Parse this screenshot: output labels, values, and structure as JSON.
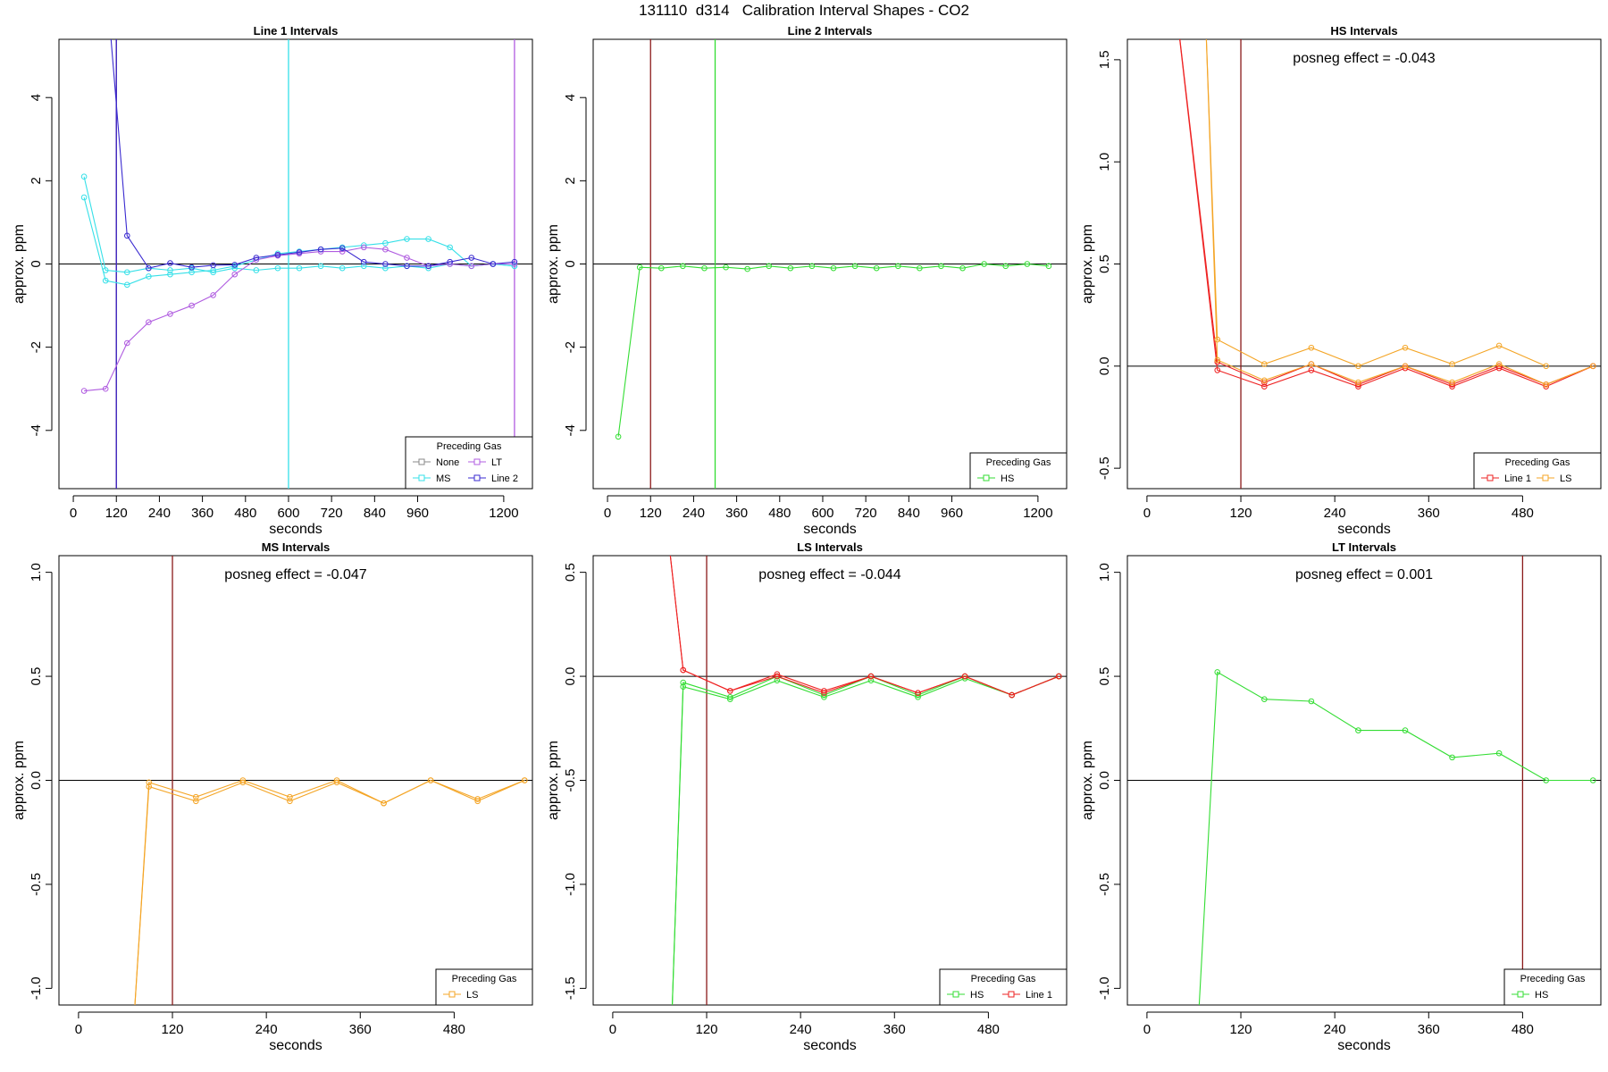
{
  "suptitle": "131110  d314   Calibration Interval Shapes - CO2",
  "colors": {
    "None": "#888888",
    "MS": "#36e0e8",
    "LT": "#b05ce0",
    "Line 2": "#3a2ad0",
    "HS": "#33dd33",
    "Line 1": "#ee2222",
    "LS": "#f4a526",
    "vline_dark": "#8b1a1a"
  },
  "chart_data": [
    {
      "type": "line",
      "title": "Line 1 Intervals",
      "xlabel": "seconds",
      "ylabel": "approx. ppm",
      "xlim": [
        -40,
        1280
      ],
      "ylim": [
        -5.4,
        5.4
      ],
      "xticks": [
        0,
        120,
        240,
        360,
        480,
        600,
        720,
        840,
        960,
        1200
      ],
      "yticks": [
        -4,
        -2,
        0,
        2,
        4
      ],
      "hline": 0,
      "vlines": [
        {
          "x": 120,
          "color": "#8b1a1a"
        },
        {
          "x": 120,
          "color": "#3a2ad0"
        },
        {
          "x": 600,
          "color": "#36e0e8"
        },
        {
          "x": 1230,
          "color": "#b05ce0"
        }
      ],
      "legend": {
        "title": "Preceding Gas",
        "position": "bottom-right",
        "cols": 2,
        "entries": [
          "None",
          "MS",
          "LT",
          "Line 2"
        ]
      },
      "series": [
        {
          "name": "MS",
          "x": [
            30,
            90,
            150,
            210,
            270,
            330,
            390,
            450,
            510,
            570,
            630,
            690,
            750,
            810,
            870,
            930,
            990,
            1050,
            1110,
            1170,
            1230
          ],
          "y": [
            2.1,
            -0.15,
            -0.2,
            -0.1,
            -0.15,
            -0.1,
            -0.2,
            -0.1,
            -0.15,
            -0.1,
            -0.1,
            -0.05,
            -0.1,
            -0.05,
            -0.1,
            -0.05,
            -0.1,
            0.0,
            -0.05,
            0.0,
            -0.05
          ]
        },
        {
          "name": "MS",
          "x": [
            30,
            90,
            150,
            210,
            270,
            330,
            390,
            450,
            510,
            570,
            630,
            690,
            750,
            810,
            870,
            930,
            990,
            1050,
            1110,
            1170,
            1230
          ],
          "y": [
            1.6,
            -0.4,
            -0.5,
            -0.3,
            -0.25,
            -0.2,
            -0.15,
            -0.05,
            0.1,
            0.25,
            0.3,
            0.35,
            0.4,
            0.45,
            0.5,
            0.6,
            0.6,
            0.4,
            -0.05,
            0.0,
            -0.05
          ]
        },
        {
          "name": "LT",
          "x": [
            30,
            90,
            150,
            210,
            270,
            330,
            390,
            450,
            510,
            570,
            630,
            690,
            750,
            810,
            870,
            930,
            990,
            1050,
            1110,
            1170,
            1230
          ],
          "y": [
            -3.05,
            -3.0,
            -1.9,
            -1.4,
            -1.2,
            -1.0,
            -0.75,
            -0.25,
            0.1,
            0.2,
            0.25,
            0.3,
            0.3,
            0.4,
            0.35,
            0.15,
            -0.05,
            0.0,
            -0.05,
            0.0,
            0.0
          ]
        },
        {
          "name": "Line 2",
          "x": [
            90,
            150,
            210,
            270,
            330,
            390,
            450,
            510,
            570,
            630,
            690,
            750,
            810,
            870,
            930,
            990,
            1050,
            1110,
            1170,
            1230
          ],
          "y": [
            7.0,
            0.68,
            -0.1,
            0.02,
            -0.08,
            -0.03,
            -0.02,
            0.15,
            0.22,
            0.28,
            0.35,
            0.38,
            0.05,
            0.0,
            -0.05,
            -0.05,
            0.05,
            0.15,
            0.0,
            0.05
          ]
        }
      ]
    },
    {
      "type": "line",
      "title": "Line 2 Intervals",
      "xlabel": "seconds",
      "ylabel": "approx. ppm",
      "xlim": [
        -40,
        1280
      ],
      "ylim": [
        -5.4,
        5.4
      ],
      "xticks": [
        0,
        120,
        240,
        360,
        480,
        600,
        720,
        840,
        960,
        1200
      ],
      "yticks": [
        -4,
        -2,
        0,
        2,
        4
      ],
      "hline": 0,
      "vlines": [
        {
          "x": 120,
          "color": "#8b1a1a"
        },
        {
          "x": 300,
          "color": "#33dd33"
        }
      ],
      "legend": {
        "title": "Preceding Gas",
        "position": "bottom-right",
        "cols": 1,
        "entries": [
          "HS"
        ]
      },
      "series": [
        {
          "name": "HS",
          "x": [
            30,
            90,
            150,
            210,
            270,
            330,
            390,
            450,
            510,
            570,
            630,
            690,
            750,
            810,
            870,
            930,
            990,
            1050,
            1110,
            1170,
            1230
          ],
          "y": [
            -4.15,
            -0.08,
            -0.1,
            -0.05,
            -0.1,
            -0.08,
            -0.12,
            -0.05,
            -0.1,
            -0.05,
            -0.1,
            -0.05,
            -0.1,
            -0.05,
            -0.1,
            -0.05,
            -0.1,
            0.0,
            -0.05,
            0.0,
            -0.05
          ]
        }
      ]
    },
    {
      "type": "line",
      "title": "HS Intervals",
      "xlabel": "seconds",
      "ylabel": "approx. ppm",
      "xlim": [
        -25,
        580
      ],
      "ylim": [
        -0.6,
        1.6
      ],
      "xticks": [
        0,
        120,
        240,
        360,
        480
      ],
      "yticks": [
        -0.5,
        0.0,
        0.5,
        1.0,
        1.5
      ],
      "hline": 0,
      "annotation": "posneg effect = -0.043",
      "vlines": [
        {
          "x": 120,
          "color": "#8b1a1a"
        }
      ],
      "legend": {
        "title": "Preceding Gas",
        "position": "bottom-right",
        "cols": 2,
        "entries": [
          "Line 1",
          "LS"
        ]
      },
      "series": [
        {
          "name": "Line 1",
          "x": [
            30,
            90,
            150,
            210,
            270,
            330,
            390,
            450,
            510,
            570
          ],
          "y": [
            2.0,
            0.02,
            -0.08,
            0.01,
            -0.09,
            0.0,
            -0.09,
            0.0,
            -0.09,
            0.0
          ]
        },
        {
          "name": "Line 1",
          "x": [
            30,
            90,
            150,
            210,
            270,
            330,
            390,
            450,
            510,
            570
          ],
          "y": [
            2.0,
            -0.02,
            -0.1,
            -0.02,
            -0.1,
            -0.01,
            -0.1,
            -0.01,
            -0.1,
            0.0
          ]
        },
        {
          "name": "LS",
          "x": [
            75,
            90,
            150,
            210,
            270,
            330,
            390,
            450,
            510
          ],
          "y": [
            1.7,
            0.13,
            0.01,
            0.09,
            0.0,
            0.09,
            0.01,
            0.1,
            0.0
          ]
        },
        {
          "name": "LS",
          "x": [
            75,
            90,
            150,
            210,
            270,
            330,
            390,
            450,
            510,
            570
          ],
          "y": [
            1.7,
            0.03,
            -0.07,
            0.01,
            -0.08,
            0.0,
            -0.08,
            0.01,
            -0.09,
            0.0
          ]
        }
      ]
    },
    {
      "type": "line",
      "title": "MS Intervals",
      "xlabel": "seconds",
      "ylabel": "approx. ppm",
      "xlim": [
        -25,
        580
      ],
      "ylim": [
        -1.08,
        1.08
      ],
      "xticks": [
        0,
        120,
        240,
        360,
        480
      ],
      "yticks": [
        -1.0,
        -0.5,
        0.0,
        0.5,
        1.0
      ],
      "hline": 0,
      "annotation": "posneg effect = -0.047",
      "vlines": [
        {
          "x": 120,
          "color": "#8b1a1a"
        }
      ],
      "legend": {
        "title": "Preceding Gas",
        "position": "bottom-right",
        "cols": 1,
        "entries": [
          "LS"
        ]
      },
      "series": [
        {
          "name": "LS",
          "x": [
            70,
            90,
            150,
            210,
            270,
            330,
            390,
            450,
            510,
            570
          ],
          "y": [
            -1.2,
            -0.01,
            -0.08,
            0.0,
            -0.08,
            0.0,
            -0.11,
            0.0,
            -0.09,
            0.0
          ]
        },
        {
          "name": "LS",
          "x": [
            70,
            90,
            150,
            210,
            270,
            330,
            390,
            450,
            510,
            570
          ],
          "y": [
            -1.2,
            -0.03,
            -0.1,
            -0.01,
            -0.1,
            -0.01,
            -0.11,
            0.0,
            -0.1,
            0.0
          ]
        }
      ]
    },
    {
      "type": "line",
      "title": "LS Intervals",
      "xlabel": "seconds",
      "ylabel": "approx. ppm",
      "xlim": [
        -25,
        580
      ],
      "ylim": [
        -1.58,
        0.58
      ],
      "xticks": [
        0,
        120,
        240,
        360,
        480
      ],
      "yticks": [
        -1.5,
        -1.0,
        -0.5,
        0.0,
        0.5
      ],
      "hline": 0,
      "annotation": "posneg effect = -0.044",
      "vlines": [
        {
          "x": 120,
          "color": "#8b1a1a"
        }
      ],
      "legend": {
        "title": "Preceding Gas",
        "position": "bottom-right",
        "cols": 2,
        "entries": [
          "HS",
          "Line 1"
        ]
      },
      "series": [
        {
          "name": "HS",
          "x": [
            75,
            90,
            150,
            210,
            270,
            330,
            390,
            450,
            510,
            570
          ],
          "y": [
            -1.7,
            -0.03,
            -0.1,
            0.0,
            -0.09,
            0.0,
            -0.09,
            0.0,
            -0.09,
            0.0
          ]
        },
        {
          "name": "HS",
          "x": [
            75,
            90,
            150,
            210,
            270,
            330,
            390,
            450,
            510,
            570
          ],
          "y": [
            -1.7,
            -0.05,
            -0.11,
            -0.02,
            -0.1,
            -0.02,
            -0.1,
            -0.01,
            -0.09,
            0.0
          ]
        },
        {
          "name": "Line 1",
          "x": [
            70,
            90,
            150,
            210,
            270,
            330,
            390,
            450,
            510,
            570
          ],
          "y": [
            0.7,
            0.03,
            -0.07,
            0.01,
            -0.07,
            0.0,
            -0.08,
            0.0,
            -0.09,
            0.0
          ]
        },
        {
          "name": "Line 1",
          "x": [
            70,
            90,
            150,
            210,
            270,
            330,
            390,
            450,
            510,
            570
          ],
          "y": [
            0.7,
            0.03,
            -0.07,
            0.0,
            -0.08,
            0.0,
            -0.08,
            0.0,
            -0.09,
            0.0
          ]
        }
      ]
    },
    {
      "type": "line",
      "title": "LT Intervals",
      "xlabel": "seconds",
      "ylabel": "approx. ppm",
      "xlim": [
        -25,
        580
      ],
      "ylim": [
        -1.08,
        1.08
      ],
      "xticks": [
        0,
        120,
        240,
        360,
        480
      ],
      "yticks": [
        -1.0,
        -0.5,
        0.0,
        0.5,
        1.0
      ],
      "hline": 0,
      "annotation": "posneg effect = 0.001",
      "vlines": [
        {
          "x": 480,
          "color": "#8b1a1a"
        }
      ],
      "legend": {
        "title": "Preceding Gas",
        "position": "bottom-right",
        "cols": 1,
        "entries": [
          "HS"
        ]
      },
      "series": [
        {
          "name": "HS",
          "x": [
            65,
            90,
            150,
            210,
            270,
            330,
            390,
            450,
            510,
            570
          ],
          "y": [
            -1.2,
            0.52,
            0.39,
            0.38,
            0.24,
            0.24,
            0.11,
            0.13,
            0.0,
            0.0
          ]
        }
      ]
    }
  ]
}
